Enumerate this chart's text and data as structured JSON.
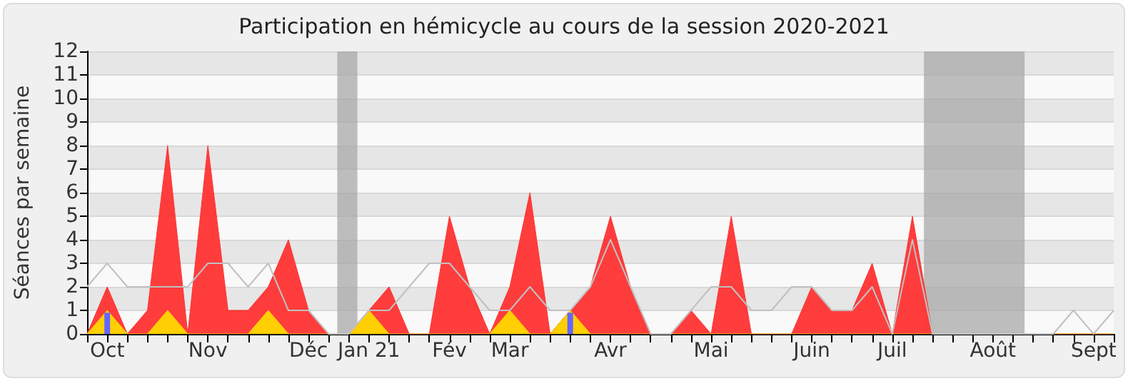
{
  "chart_data": {
    "type": "area",
    "title": "Participation en hémicycle au cours de la session 2020-2021",
    "ylabel": "Séances par semaine",
    "x": [
      "2020-10-05",
      "2020-10-12",
      "2020-10-19",
      "2020-10-26",
      "2020-11-02",
      "2020-11-09",
      "2020-11-16",
      "2020-11-23",
      "2020-11-30",
      "2020-12-07",
      "2020-12-14",
      "2020-12-21",
      "2020-12-28",
      "2021-01-04",
      "2021-01-11",
      "2021-01-18",
      "2021-01-25",
      "2021-02-01",
      "2021-02-08",
      "2021-02-15",
      "2021-02-22",
      "2021-03-01",
      "2021-03-08",
      "2021-03-15",
      "2021-03-22",
      "2021-03-29",
      "2021-04-05",
      "2021-04-12",
      "2021-04-19",
      "2021-04-26",
      "2021-05-03",
      "2021-05-10",
      "2021-05-17",
      "2021-05-24",
      "2021-05-31",
      "2021-06-07",
      "2021-06-14",
      "2021-06-21",
      "2021-06-28",
      "2021-07-05",
      "2021-07-12",
      "2021-07-19",
      "2021-07-26",
      "2021-08-02",
      "2021-08-09",
      "2021-08-16",
      "2021-08-23",
      "2021-08-30",
      "2021-09-06",
      "2021-09-13",
      "2021-09-20",
      "2021-09-27"
    ],
    "series": [
      {
        "color": "#ff3333",
        "values": [
          0,
          2,
          0,
          1,
          8,
          0,
          8,
          1,
          1,
          2,
          4,
          1,
          0,
          0,
          1,
          2,
          0,
          0,
          5,
          2,
          0,
          2,
          6,
          0,
          1,
          2,
          5,
          2,
          0,
          0,
          1,
          0,
          5,
          0,
          0,
          0,
          2,
          1,
          1,
          3,
          0,
          5,
          0,
          0,
          0,
          0,
          0,
          0,
          0,
          0,
          0,
          0
        ]
      },
      {
        "type": "area",
        "color": "#ffd700",
        "values": [
          0,
          1,
          0,
          0,
          1,
          0,
          0,
          0,
          0,
          1,
          0,
          0,
          0,
          0,
          1,
          0,
          0,
          0,
          0,
          0,
          0,
          1,
          0,
          0,
          1,
          0,
          0,
          0,
          0,
          0,
          0,
          0,
          0,
          0,
          0,
          0,
          0,
          0,
          0,
          0,
          0,
          0,
          0,
          0,
          0,
          0,
          0,
          0,
          0,
          0,
          0,
          0
        ]
      },
      {
        "type": "line",
        "color": "#c0c0c0",
        "values": [
          2,
          3,
          2,
          2,
          2,
          2,
          3,
          3,
          2,
          3,
          1,
          1,
          0,
          0,
          1,
          1,
          2,
          3,
          3,
          2,
          1,
          1,
          2,
          1,
          1,
          2,
          4,
          2,
          0,
          0,
          1,
          2,
          2,
          1,
          1,
          2,
          2,
          1,
          1,
          2,
          0,
          4,
          0,
          0,
          0,
          0,
          0,
          0,
          0,
          1,
          0,
          1
        ]
      },
      {
        "type": "bar",
        "color": "#6666ff",
        "x": [
          "2020-10-12",
          "2021-03-22"
        ],
        "values": [
          0.9,
          0.9
        ]
      }
    ],
    "xlim": [
      "2020-10-05",
      "2021-09-27"
    ],
    "xticks": [
      {
        "value": "2020-10-05",
        "label": null
      },
      {
        "value": "2020-10-12",
        "label": "Oct"
      },
      {
        "value": "2020-10-19",
        "label": null
      },
      {
        "value": "2020-10-26",
        "label": null
      },
      {
        "value": "2020-11-02",
        "label": null
      },
      {
        "value": "2020-11-09",
        "label": null
      },
      {
        "value": "2020-11-16",
        "label": "Nov"
      },
      {
        "value": "2020-11-23",
        "label": null
      },
      {
        "value": "2020-11-30",
        "label": null
      },
      {
        "value": "2020-12-07",
        "label": null
      },
      {
        "value": "2020-12-14",
        "label": null
      },
      {
        "value": "2020-12-21",
        "label": "Déc"
      },
      {
        "value": "2020-12-28",
        "label": null
      },
      {
        "value": "2021-01-04",
        "label": null
      },
      {
        "value": "2021-01-11",
        "label": "Jan 21"
      },
      {
        "value": "2021-01-18",
        "label": null
      },
      {
        "value": "2021-01-25",
        "label": null
      },
      {
        "value": "2021-02-01",
        "label": null
      },
      {
        "value": "2021-02-08",
        "label": "Fév"
      },
      {
        "value": "2021-02-15",
        "label": null
      },
      {
        "value": "2021-02-22",
        "label": null
      },
      {
        "value": "2021-03-01",
        "label": "Mar"
      },
      {
        "value": "2021-03-08",
        "label": null
      },
      {
        "value": "2021-03-15",
        "label": null
      },
      {
        "value": "2021-03-22",
        "label": null
      },
      {
        "value": "2021-03-29",
        "label": null
      },
      {
        "value": "2021-04-05",
        "label": "Avr"
      },
      {
        "value": "2021-04-12",
        "label": null
      },
      {
        "value": "2021-04-19",
        "label": null
      },
      {
        "value": "2021-04-26",
        "label": null
      },
      {
        "value": "2021-05-03",
        "label": null
      },
      {
        "value": "2021-05-10",
        "label": "Mai"
      },
      {
        "value": "2021-05-17",
        "label": null
      },
      {
        "value": "2021-05-24",
        "label": null
      },
      {
        "value": "2021-05-31",
        "label": null
      },
      {
        "value": "2021-06-07",
        "label": null
      },
      {
        "value": "2021-06-14",
        "label": "Juin"
      },
      {
        "value": "2021-06-21",
        "label": null
      },
      {
        "value": "2021-06-28",
        "label": null
      },
      {
        "value": "2021-07-05",
        "label": null
      },
      {
        "value": "2021-07-12",
        "label": "Juil"
      },
      {
        "value": "2021-07-19",
        "label": null
      },
      {
        "value": "2021-07-26",
        "label": null
      },
      {
        "value": "2021-08-02",
        "label": null
      },
      {
        "value": "2021-08-09",
        "label": null
      },
      {
        "value": "2021-08-16",
        "label": "Août"
      },
      {
        "value": "2021-08-23",
        "label": null
      },
      {
        "value": "2021-08-30",
        "label": null
      },
      {
        "value": "2021-09-06",
        "label": null
      },
      {
        "value": "2021-09-13",
        "label": null
      },
      {
        "value": "2021-09-20",
        "label": "Sept"
      },
      {
        "value": "2021-09-27",
        "label": null
      }
    ],
    "ylim": [
      0,
      12
    ],
    "yticks": [
      0,
      1,
      2,
      3,
      4,
      5,
      6,
      7,
      8,
      9,
      10,
      11,
      12
    ],
    "bands": [
      {
        "axis": "x",
        "from": "2020-12-31",
        "to": "2021-01-07",
        "color": "#a8a8a8"
      },
      {
        "axis": "x",
        "from": "2021-07-23",
        "to": "2021-08-27",
        "color": "#a8a8a8"
      }
    ],
    "grid": "y",
    "legend": false,
    "marker": "none"
  }
}
